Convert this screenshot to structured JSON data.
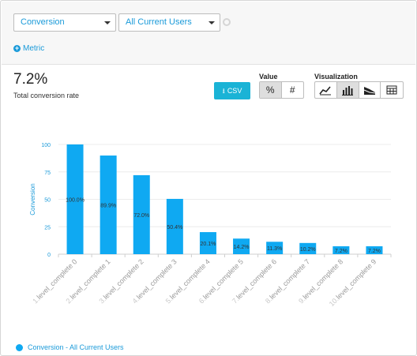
{
  "controls": {
    "metric_select": "Conversion",
    "segment_select": "All Current Users",
    "add_metric_label": "Metric"
  },
  "summary": {
    "value": "7.2%",
    "label": "Total conversion rate"
  },
  "actions": {
    "csv_label": "CSV"
  },
  "value_toggle": {
    "label": "Value",
    "options": [
      "%",
      "#"
    ],
    "selected": "%"
  },
  "visualization_toggle": {
    "label": "Visualization",
    "options": [
      "line-chart-icon",
      "bar-chart-icon",
      "area-chart-icon",
      "table-icon"
    ],
    "selected": "bar-chart-icon"
  },
  "legend": {
    "label": "Conversion - All Current Users",
    "color": "#0fa9f2"
  },
  "chart_data": {
    "type": "bar",
    "categories": [
      "level_complete 0",
      "level_complete 1",
      "level_complete 2",
      "level_complete 3",
      "level_complete 4",
      "level_complete 5",
      "level_complete 6",
      "level_complete 7",
      "level_complete 8",
      "level_complete 9"
    ],
    "category_prefixes": [
      "1.",
      "2.",
      "3.",
      "4.",
      "5.",
      "6.",
      "7.",
      "8.",
      "9.",
      "10."
    ],
    "values": [
      100.0,
      89.9,
      72.0,
      50.4,
      20.1,
      14.2,
      11.3,
      10.2,
      7.2,
      7.2
    ],
    "data_labels": [
      "100.0%",
      "89.9%",
      "72.0%",
      "50.4%",
      "20.1%",
      "14.2%",
      "11.3%",
      "10.2%",
      "7.2%",
      "7.2%"
    ],
    "ylabel": "Conversion",
    "yticks": [
      0,
      25,
      50,
      75,
      100
    ],
    "ylim": [
      0,
      100
    ],
    "grid": true,
    "bar_color": "#0fa9f2",
    "axis_text_color": "#1a9ad9"
  }
}
